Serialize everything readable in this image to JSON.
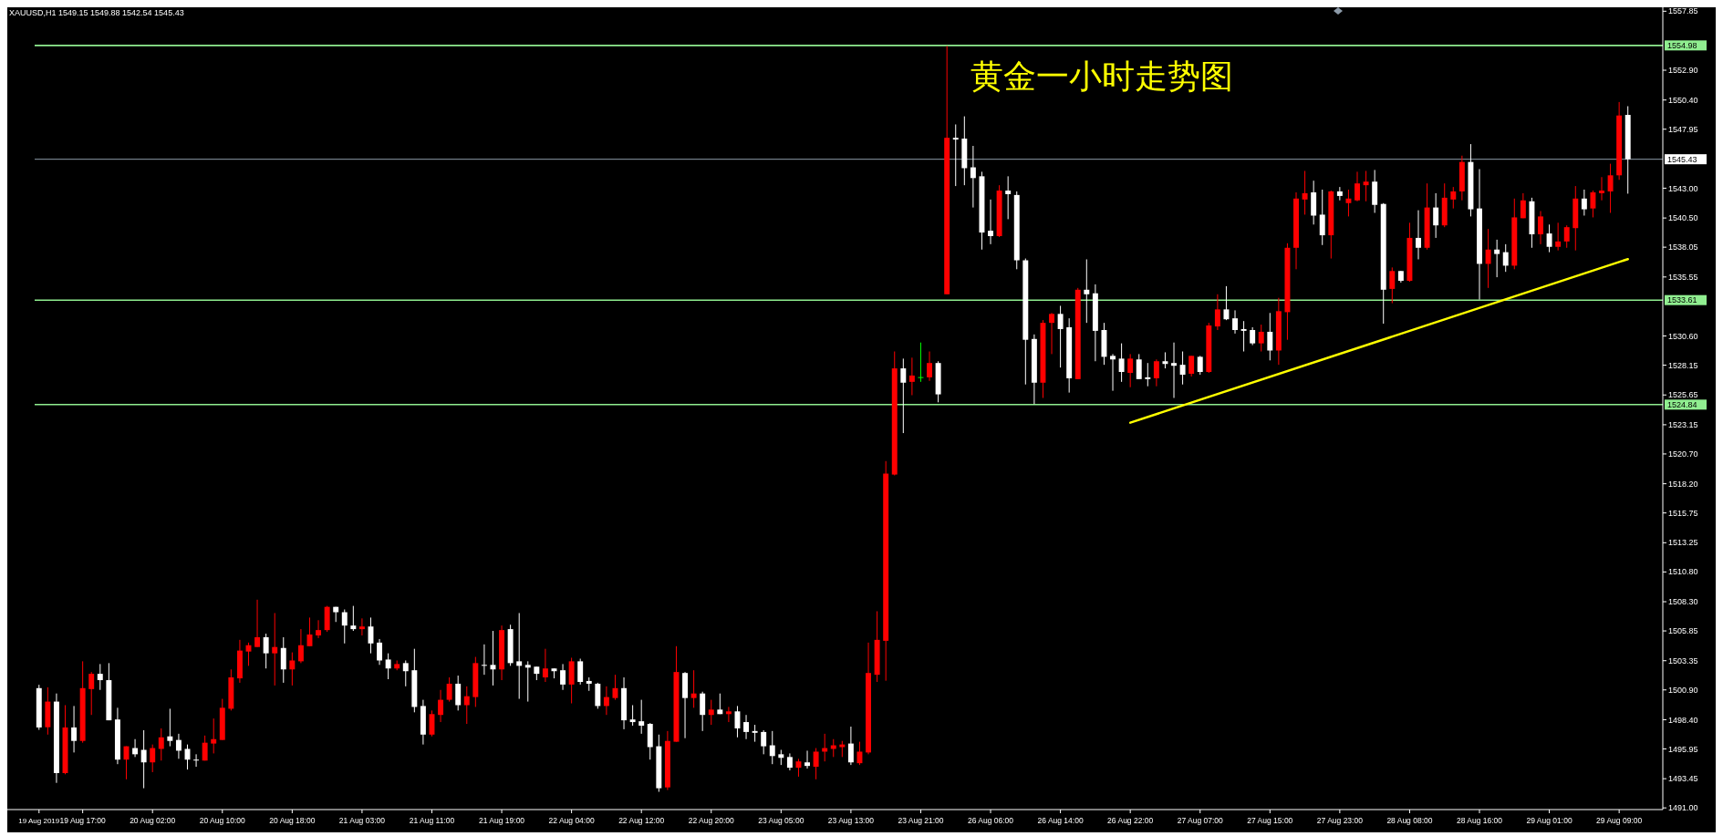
{
  "chart_data": {
    "type": "candlestick",
    "title": "黄金一小时走势图",
    "annotations": [
      "XAUUSD,H1  1549.15 1549.88 1542.54 1545.43"
    ],
    "categories": [
      "19 Aug 2019",
      null,
      null,
      null,
      null,
      "19 Aug 17:00",
      null,
      null,
      null,
      null,
      null,
      null,
      null,
      "20 Aug 02:00",
      null,
      null,
      null,
      null,
      null,
      null,
      null,
      "20 Aug 10:00",
      null,
      null,
      null,
      null,
      null,
      null,
      null,
      "20 Aug 18:00",
      null,
      null,
      null,
      null,
      null,
      null,
      null,
      "21 Aug 03:00",
      null,
      null,
      null,
      null,
      null,
      null,
      null,
      "21 Aug 11:00",
      null,
      null,
      null,
      null,
      null,
      null,
      null,
      "21 Aug 19:00",
      null,
      null,
      null,
      null,
      null,
      null,
      null,
      "22 Aug 04:00",
      null,
      null,
      null,
      null,
      null,
      null,
      null,
      "22 Aug 12:00",
      null,
      null,
      null,
      null,
      null,
      null,
      null,
      "22 Aug 20:00",
      null,
      null,
      null,
      null,
      null,
      null,
      null,
      "23 Aug 05:00",
      null,
      null,
      null,
      null,
      null,
      null,
      null,
      "23 Aug 13:00",
      null,
      null,
      null,
      null,
      null,
      null,
      null,
      "23 Aug 21:00",
      null,
      null,
      null,
      null,
      null,
      null,
      null,
      "26 Aug 06:00",
      null,
      null,
      null,
      null,
      null,
      null,
      null,
      "26 Aug 14:00",
      null,
      null,
      null,
      null,
      null,
      null,
      null,
      "26 Aug 22:00",
      null,
      null,
      null,
      null,
      null,
      null,
      null,
      "27 Aug 07:00",
      null,
      null,
      null,
      null,
      null,
      null,
      null,
      "27 Aug 15:00",
      null,
      null,
      null,
      null,
      null,
      null,
      null,
      "27 Aug 23:00",
      null,
      null,
      null,
      null,
      null,
      null,
      null,
      "28 Aug 08:00",
      null,
      null,
      null,
      null,
      null,
      null,
      null,
      "28 Aug 16:00",
      null,
      null,
      null,
      null,
      null,
      null,
      null,
      "29 Aug 01:00",
      null,
      null,
      null,
      null,
      null,
      null,
      null,
      "29 Aug 09:00",
      null
    ],
    "ohlc": [
      [
        1501.05,
        1501.33,
        1497.55,
        1497.75
      ],
      [
        1497.77,
        1501.12,
        1497.15,
        1499.92
      ],
      [
        1499.92,
        1500.6,
        1493.1,
        1493.92
      ],
      [
        1493.92,
        1499.62,
        1493.82,
        1497.75
      ],
      [
        1497.75,
        1499.55,
        1495.65,
        1496.62
      ],
      [
        1496.62,
        1503.3,
        1496.47,
        1501.05
      ],
      [
        1500.97,
        1502.4,
        1498.8,
        1502.25
      ],
      [
        1502.25,
        1503.07,
        1500.9,
        1501.72
      ],
      [
        1501.72,
        1503.15,
        1498.35,
        1498.35
      ],
      [
        1498.42,
        1499.4,
        1494.67,
        1495.05
      ],
      [
        1495.05,
        1496.17,
        1493.4,
        1496.17
      ],
      [
        1496.02,
        1496.77,
        1495.27,
        1495.5
      ],
      [
        1495.87,
        1497.52,
        1492.65,
        1494.82
      ],
      [
        1494.82,
        1496.32,
        1494.0,
        1496.02
      ],
      [
        1495.95,
        1497.67,
        1494.97,
        1496.92
      ],
      [
        1497.0,
        1499.32,
        1496.17,
        1496.62
      ],
      [
        1496.7,
        1497.22,
        1495.12,
        1495.8
      ],
      [
        1495.95,
        1496.32,
        1494.22,
        1495.05
      ],
      [
        1495.05,
        1495.5,
        1494.45,
        1495.0
      ],
      [
        1494.97,
        1497.07,
        1494.97,
        1496.47
      ],
      [
        1496.4,
        1498.5,
        1495.57,
        1496.77
      ],
      [
        1496.7,
        1500.15,
        1496.7,
        1499.4
      ],
      [
        1499.32,
        1502.62,
        1499.17,
        1501.95
      ],
      [
        1501.87,
        1505.1,
        1501.5,
        1504.2
      ],
      [
        1504.12,
        1504.87,
        1502.92,
        1504.65
      ],
      [
        1504.5,
        1508.47,
        1504.5,
        1505.32
      ],
      [
        1505.32,
        1505.62,
        1502.7,
        1503.97
      ],
      [
        1503.97,
        1507.35,
        1501.27,
        1504.5
      ],
      [
        1504.42,
        1505.32,
        1501.5,
        1502.62
      ],
      [
        1502.62,
        1504.05,
        1501.27,
        1503.37
      ],
      [
        1503.3,
        1506.0,
        1503.15,
        1504.65
      ],
      [
        1504.57,
        1506.97,
        1504.57,
        1505.55
      ],
      [
        1505.47,
        1506.75,
        1505.25,
        1505.92
      ],
      [
        1505.92,
        1507.95,
        1505.77,
        1507.87
      ],
      [
        1507.87,
        1507.87,
        1506.6,
        1507.42
      ],
      [
        1507.42,
        1507.65,
        1504.8,
        1506.3
      ],
      [
        1506.3,
        1507.95,
        1505.85,
        1506.0
      ],
      [
        1506.0,
        1506.9,
        1505.47,
        1506.22
      ],
      [
        1506.22,
        1506.97,
        1503.97,
        1504.8
      ],
      [
        1504.87,
        1505.17,
        1503.0,
        1503.37
      ],
      [
        1503.45,
        1503.97,
        1501.8,
        1502.7
      ],
      [
        1502.7,
        1503.37,
        1502.55,
        1503.07
      ],
      [
        1503.15,
        1503.37,
        1501.2,
        1502.47
      ],
      [
        1502.55,
        1504.35,
        1499.02,
        1499.47
      ],
      [
        1499.55,
        1500.07,
        1496.32,
        1497.15
      ],
      [
        1497.15,
        1499.17,
        1497.0,
        1498.87
      ],
      [
        1498.8,
        1500.9,
        1498.2,
        1500.07
      ],
      [
        1500.07,
        1501.95,
        1499.92,
        1501.42
      ],
      [
        1501.42,
        1502.1,
        1499.17,
        1499.62
      ],
      [
        1499.62,
        1501.2,
        1498.05,
        1500.37
      ],
      [
        1500.3,
        1503.67,
        1499.47,
        1503.15
      ],
      [
        1503.0,
        1504.72,
        1502.17,
        1502.95
      ],
      [
        1503.0,
        1505.85,
        1501.27,
        1502.62
      ],
      [
        1502.62,
        1506.3,
        1501.72,
        1505.92
      ],
      [
        1506.0,
        1506.37,
        1502.92,
        1503.15
      ],
      [
        1503.3,
        1507.35,
        1500.15,
        1502.92
      ],
      [
        1503.0,
        1503.3,
        1499.92,
        1502.77
      ],
      [
        1502.85,
        1502.85,
        1501.72,
        1502.25
      ],
      [
        1501.95,
        1504.35,
        1501.57,
        1502.7
      ],
      [
        1502.7,
        1502.7,
        1501.87,
        1502.47
      ],
      [
        1502.55,
        1503.07,
        1500.9,
        1501.35
      ],
      [
        1501.35,
        1503.6,
        1499.77,
        1503.3
      ],
      [
        1503.3,
        1503.52,
        1501.35,
        1501.57
      ],
      [
        1501.65,
        1501.95,
        1500.82,
        1501.42
      ],
      [
        1501.42,
        1501.5,
        1499.32,
        1499.55
      ],
      [
        1499.55,
        1501.2,
        1498.8,
        1500.3
      ],
      [
        1500.22,
        1502.17,
        1500.07,
        1501.05
      ],
      [
        1501.05,
        1501.95,
        1497.6,
        1498.35
      ],
      [
        1498.42,
        1499.62,
        1497.9,
        1498.2
      ],
      [
        1498.27,
        1500.07,
        1497.22,
        1497.9
      ],
      [
        1498.05,
        1498.12,
        1495.05,
        1496.1
      ],
      [
        1496.17,
        1497.15,
        1492.35,
        1492.65
      ],
      [
        1492.72,
        1497.45,
        1492.5,
        1496.62
      ],
      [
        1496.55,
        1504.57,
        1496.55,
        1502.4
      ],
      [
        1502.32,
        1502.4,
        1496.85,
        1500.22
      ],
      [
        1500.22,
        1502.55,
        1499.4,
        1500.6
      ],
      [
        1500.6,
        1500.75,
        1497.45,
        1498.8
      ],
      [
        1498.8,
        1500.07,
        1497.97,
        1499.25
      ],
      [
        1499.25,
        1500.6,
        1498.87,
        1498.87
      ],
      [
        1498.87,
        1499.47,
        1498.2,
        1499.1
      ],
      [
        1499.1,
        1499.55,
        1496.92,
        1497.67
      ],
      [
        1498.2,
        1498.8,
        1496.77,
        1497.37
      ],
      [
        1497.45,
        1497.97,
        1496.55,
        1497.3
      ],
      [
        1497.37,
        1497.52,
        1495.5,
        1496.17
      ],
      [
        1496.25,
        1497.45,
        1494.67,
        1495.35
      ],
      [
        1495.5,
        1495.87,
        1494.6,
        1495.2
      ],
      [
        1495.27,
        1495.57,
        1494.15,
        1494.37
      ],
      [
        1494.37,
        1495.12,
        1493.62,
        1494.9
      ],
      [
        1494.82,
        1495.8,
        1494.3,
        1494.52
      ],
      [
        1494.45,
        1496.02,
        1493.4,
        1495.72
      ],
      [
        1495.72,
        1497.22,
        1494.9,
        1496.02
      ],
      [
        1495.95,
        1496.77,
        1495.27,
        1496.25
      ],
      [
        1496.1,
        1496.62,
        1495.27,
        1496.32
      ],
      [
        1496.4,
        1497.82,
        1494.6,
        1494.82
      ],
      [
        1494.75,
        1496.55,
        1494.6,
        1495.72
      ],
      [
        1495.65,
        1504.87,
        1495.5,
        1502.32
      ],
      [
        1502.17,
        1507.5,
        1501.57,
        1505.1
      ],
      [
        1505.02,
        1520.1,
        1501.67,
        1519.05
      ],
      [
        1518.97,
        1529.3,
        1518.9,
        1527.88
      ],
      [
        1527.88,
        1528.7,
        1522.45,
        1526.68
      ],
      [
        1526.75,
        1528.78,
        1525.63,
        1527.28
      ],
      [
        1527.15,
        1530.05,
        1526.75,
        1527.15
      ],
      [
        1527.13,
        1529.3,
        1526.83,
        1528.33
      ],
      [
        1528.33,
        1528.48,
        1525.03,
        1525.7
      ],
      [
        1534.1,
        1554.93,
        1534.1,
        1547.23
      ],
      [
        1547.23,
        1548.35,
        1543.18,
        1547.08
      ],
      [
        1547.16,
        1549.03,
        1543.25,
        1544.68
      ],
      [
        1544.75,
        1546.55,
        1541.38,
        1543.85
      ],
      [
        1544.0,
        1544.38,
        1537.85,
        1539.28
      ],
      [
        1539.43,
        1542.05,
        1538.3,
        1538.98
      ],
      [
        1538.98,
        1543.25,
        1538.9,
        1542.8
      ],
      [
        1542.8,
        1544.0,
        1540.4,
        1542.5
      ],
      [
        1542.43,
        1542.73,
        1536.2,
        1536.95
      ],
      [
        1536.95,
        1537.1,
        1526.53,
        1530.28
      ],
      [
        1530.35,
        1530.73,
        1524.88,
        1526.68
      ],
      [
        1526.68,
        1531.93,
        1525.4,
        1531.7
      ],
      [
        1531.7,
        1532.53,
        1529.08,
        1532.45
      ],
      [
        1532.45,
        1533.13,
        1527.95,
        1531.18
      ],
      [
        1531.33,
        1532.08,
        1525.85,
        1527.05
      ],
      [
        1526.98,
        1534.63,
        1526.98,
        1534.48
      ],
      [
        1534.48,
        1537.03,
        1531.7,
        1534.1
      ],
      [
        1534.18,
        1534.93,
        1528.48,
        1531.03
      ],
      [
        1531.1,
        1531.7,
        1528.18,
        1528.85
      ],
      [
        1528.93,
        1529.08,
        1526.0,
        1528.63
      ],
      [
        1528.7,
        1529.98,
        1526.75,
        1527.58
      ],
      [
        1527.5,
        1529.08,
        1526.3,
        1528.7
      ],
      [
        1528.63,
        1529.08,
        1526.98,
        1526.98
      ],
      [
        1527.13,
        1528.33,
        1526.38,
        1526.98
      ],
      [
        1527.05,
        1528.63,
        1526.38,
        1528.48
      ],
      [
        1528.48,
        1529.23,
        1527.88,
        1528.25
      ],
      [
        1528.33,
        1530.05,
        1525.4,
        1528.1
      ],
      [
        1528.18,
        1529.3,
        1526.53,
        1527.35
      ],
      [
        1527.43,
        1528.93,
        1527.2,
        1528.93
      ],
      [
        1528.85,
        1528.93,
        1527.35,
        1527.58
      ],
      [
        1527.58,
        1531.7,
        1527.5,
        1531.48
      ],
      [
        1531.4,
        1534.1,
        1531.1,
        1532.83
      ],
      [
        1532.83,
        1534.78,
        1531.93,
        1532.0
      ],
      [
        1532.08,
        1532.75,
        1530.8,
        1531.1
      ],
      [
        1531.18,
        1531.85,
        1529.3,
        1531.03
      ],
      [
        1531.1,
        1531.33,
        1529.83,
        1529.98
      ],
      [
        1529.98,
        1531.55,
        1529.3,
        1530.95
      ],
      [
        1530.95,
        1532.53,
        1528.55,
        1529.38
      ],
      [
        1529.38,
        1533.8,
        1528.18,
        1532.68
      ],
      [
        1532.6,
        1538.38,
        1530.28,
        1538.0
      ],
      [
        1538.0,
        1542.65,
        1536.2,
        1542.13
      ],
      [
        1542.05,
        1544.45,
        1540.78,
        1542.58
      ],
      [
        1542.65,
        1543.63,
        1539.95,
        1540.7
      ],
      [
        1540.78,
        1542.88,
        1538.23,
        1539.05
      ],
      [
        1539.05,
        1542.8,
        1537.1,
        1542.73
      ],
      [
        1542.73,
        1543.1,
        1541.98,
        1542.35
      ],
      [
        1541.75,
        1542.88,
        1540.63,
        1542.13
      ],
      [
        1541.98,
        1544.38,
        1541.9,
        1543.4
      ],
      [
        1543.25,
        1544.45,
        1541.9,
        1543.55
      ],
      [
        1543.55,
        1544.53,
        1540.93,
        1541.6
      ],
      [
        1541.68,
        1541.75,
        1531.63,
        1534.48
      ],
      [
        1534.55,
        1536.35,
        1533.35,
        1536.05
      ],
      [
        1536.05,
        1536.05,
        1535.08,
        1535.23
      ],
      [
        1535.23,
        1540.1,
        1535.15,
        1538.83
      ],
      [
        1538.83,
        1541.15,
        1537.03,
        1538.0
      ],
      [
        1538.0,
        1543.4,
        1537.85,
        1541.38
      ],
      [
        1541.38,
        1542.58,
        1538.83,
        1539.88
      ],
      [
        1539.88,
        1543.4,
        1539.73,
        1542.2
      ],
      [
        1542.05,
        1543.1,
        1541.3,
        1542.73
      ],
      [
        1542.73,
        1545.73,
        1541.98,
        1545.2
      ],
      [
        1545.2,
        1546.7,
        1540.63,
        1541.23
      ],
      [
        1541.3,
        1544.6,
        1533.65,
        1536.65
      ],
      [
        1536.65,
        1539.58,
        1534.63,
        1537.85
      ],
      [
        1537.85,
        1538.68,
        1535.53,
        1537.48
      ],
      [
        1537.63,
        1538.3,
        1535.98,
        1536.5
      ],
      [
        1536.5,
        1542.13,
        1536.2,
        1540.55
      ],
      [
        1540.48,
        1542.58,
        1540.48,
        1541.98
      ],
      [
        1541.9,
        1542.2,
        1538.0,
        1539.13
      ],
      [
        1539.13,
        1541.08,
        1538.3,
        1540.63
      ],
      [
        1539.2,
        1539.95,
        1537.63,
        1538.08
      ],
      [
        1538.08,
        1540.1,
        1537.78,
        1538.53
      ],
      [
        1538.53,
        1539.88,
        1538.0,
        1539.73
      ],
      [
        1539.65,
        1543.18,
        1537.78,
        1542.13
      ],
      [
        1542.13,
        1542.88,
        1540.7,
        1541.23
      ],
      [
        1541.3,
        1542.8,
        1540.55,
        1542.65
      ],
      [
        1542.58,
        1543.93,
        1541.98,
        1542.8
      ],
      [
        1542.73,
        1545.05,
        1540.93,
        1544.08
      ],
      [
        1544.08,
        1550.23,
        1543.7,
        1549.1
      ],
      [
        1549.15,
        1549.88,
        1542.54,
        1545.43
      ]
    ],
    "colors": [
      "#ffffff",
      "#ff0000",
      "#ffffff",
      "#ff0000",
      "#ffffff",
      "#ff0000",
      "#ff0000",
      "#ffffff",
      "#ffffff",
      "#ffffff",
      "#ff0000",
      "#ffffff",
      "#ffffff",
      "#ff0000",
      "#ff0000",
      "#ffffff",
      "#ffffff",
      "#ffffff",
      "#ffffff",
      "#ff0000",
      "#ff0000",
      "#ff0000",
      "#ff0000",
      "#ff0000",
      "#ff0000",
      "#ff0000",
      "#ffffff",
      "#ff0000",
      "#ffffff",
      "#ff0000",
      "#ff0000",
      "#ff0000",
      "#ff0000",
      "#ff0000",
      "#ffffff",
      "#ffffff",
      "#ffffff",
      "#ff0000",
      "#ffffff",
      "#ffffff",
      "#ffffff",
      "#ff0000",
      "#ffffff",
      "#ffffff",
      "#ffffff",
      "#ff0000",
      "#ff0000",
      "#ff0000",
      "#ffffff",
      "#ff0000",
      "#ff0000",
      "#ffffff",
      "#ffffff",
      "#ff0000",
      "#ffffff",
      "#ffffff",
      "#ffffff",
      "#ffffff",
      "#ff0000",
      "#ffffff",
      "#ffffff",
      "#ff0000",
      "#ffffff",
      "#ffffff",
      "#ffffff",
      "#ff0000",
      "#ff0000",
      "#ffffff",
      "#ffffff",
      "#ffffff",
      "#ffffff",
      "#ffffff",
      "#ff0000",
      "#ff0000",
      "#ffffff",
      "#ff0000",
      "#ffffff",
      "#ff0000",
      "#ffffff",
      "#ff0000",
      "#ffffff",
      "#ffffff",
      "#ffffff",
      "#ffffff",
      "#ffffff",
      "#ffffff",
      "#ffffff",
      "#ff0000",
      "#ffffff",
      "#ff0000",
      "#ff0000",
      "#ff0000",
      "#ff0000",
      "#ffffff",
      "#ff0000",
      "#ff0000",
      "#ff0000",
      "#ff0000",
      "#ff0000",
      "#ffffff",
      "#ff0000",
      "#00ff00",
      "#ff0000",
      "#ffffff",
      "#ff0000",
      "#ffffff",
      "#ffffff",
      "#ffffff",
      "#ffffff",
      "#ffffff",
      "#ff0000",
      "#ffffff",
      "#ffffff",
      "#ffffff",
      "#ffffff",
      "#ff0000",
      "#ff0000",
      "#ffffff",
      "#ffffff",
      "#ff0000",
      "#ffffff",
      "#ffffff",
      "#ffffff",
      "#ffffff",
      "#ffffff",
      "#ff0000",
      "#ffffff",
      "#ffffff",
      "#ff0000",
      "#ffffff",
      "#ffffff",
      "#ffffff",
      "#ff0000",
      "#ffffff",
      "#ff0000",
      "#ff0000",
      "#ffffff",
      "#ffffff",
      "#ffffff",
      "#ffffff",
      "#ff0000",
      "#ffffff",
      "#ff0000",
      "#ff0000",
      "#ff0000",
      "#ff0000",
      "#ffffff",
      "#ffffff",
      "#ff0000",
      "#ffffff",
      "#ff0000",
      "#ff0000",
      "#ff0000",
      "#ffffff",
      "#ffffff",
      "#ff0000",
      "#ffffff",
      "#ff0000",
      "#ffffff",
      "#ff0000",
      "#ffffff",
      "#ff0000",
      "#ff0000",
      "#ff0000",
      "#ffffff",
      "#ffffff",
      "#ff0000",
      "#ffffff",
      "#ffffff",
      "#ff0000",
      "#ff0000",
      "#ffffff",
      "#ff0000",
      "#ffffff",
      "#ff0000",
      "#ff0000",
      "#ff0000",
      "#ffffff",
      "#ff0000",
      "#ff0000",
      "#ff0000",
      "#ff0000",
      "#ffffff"
    ],
    "series": [
      {
        "type": "line",
        "color": "#ffff00",
        "values": [
          null,
          null,
          null,
          null,
          null,
          null,
          null,
          null,
          null,
          null,
          null,
          null,
          null,
          null,
          null,
          null,
          null,
          null,
          null,
          null,
          null,
          null,
          null,
          null,
          null,
          null,
          null,
          null,
          null,
          null,
          null,
          null,
          null,
          null,
          null,
          null,
          null,
          null,
          null,
          null,
          null,
          null,
          null,
          null,
          null,
          null,
          null,
          null,
          null,
          null,
          null,
          null,
          null,
          null,
          null,
          null,
          null,
          null,
          null,
          null,
          null,
          null,
          null,
          null,
          null,
          null,
          null,
          null,
          null,
          null,
          null,
          null,
          null,
          null,
          null,
          null,
          null,
          null,
          null,
          null,
          null,
          null,
          null,
          null,
          null,
          null,
          null,
          null,
          null,
          null,
          null,
          null,
          null,
          null,
          null,
          null,
          null,
          null,
          null,
          null,
          null,
          null,
          null,
          null,
          null,
          null,
          null,
          null,
          null,
          null,
          null,
          null,
          null,
          null,
          null,
          null,
          null,
          null,
          null,
          null,
          null,
          null,
          null,
          null,
          null,
          1523.32,
          null,
          null,
          null,
          null,
          null,
          null,
          null,
          null,
          null,
          null,
          null,
          null,
          null,
          null,
          null,
          null,
          null,
          null,
          null,
          null,
          null,
          null,
          null,
          null,
          null,
          null,
          null,
          null,
          null,
          null,
          null,
          null,
          null,
          null,
          null,
          null,
          null,
          null,
          null,
          null,
          null,
          null,
          null,
          null,
          null,
          null,
          null,
          null,
          null,
          null,
          null,
          null,
          null,
          null,
          null,
          null,
          1537.05
        ]
      }
    ],
    "ref_lines": [
      {
        "axis": "y",
        "value": 1554.98,
        "label": "1554.98",
        "color": "#90ee90"
      },
      {
        "axis": "y",
        "value": 1545.43,
        "label": "1545.43",
        "color": "#8c9aa8"
      },
      {
        "axis": "y",
        "value": 1533.61,
        "label": "1533.61",
        "color": "#90ee90"
      },
      {
        "axis": "y",
        "value": 1524.84,
        "label": "1524.84",
        "color": "#90ee90"
      }
    ],
    "ylim": [
      1490.86,
      1558.18
    ],
    "yticks": [
      {
        "value": 1557.85,
        "label": "1557.85"
      },
      {
        "value": 1552.9,
        "label": "1552.90"
      },
      {
        "value": 1550.4,
        "label": "1550.40"
      },
      {
        "value": 1547.95,
        "label": "1547.95"
      },
      {
        "value": 1543.0,
        "label": "1543.00"
      },
      {
        "value": 1540.5,
        "label": "1540.50"
      },
      {
        "value": 1538.05,
        "label": "1538.05"
      },
      {
        "value": 1535.55,
        "label": "1535.55"
      },
      {
        "value": 1530.6,
        "label": "1530.60"
      },
      {
        "value": 1528.15,
        "label": "1528.15"
      },
      {
        "value": 1525.65,
        "label": "1525.65"
      },
      {
        "value": 1523.15,
        "label": "1523.15"
      },
      {
        "value": 1520.7,
        "label": "1520.70"
      },
      {
        "value": 1518.2,
        "label": "1518.20"
      },
      {
        "value": 1515.75,
        "label": "1515.75"
      },
      {
        "value": 1513.25,
        "label": "1513.25"
      },
      {
        "value": 1510.8,
        "label": "1510.80"
      },
      {
        "value": 1508.3,
        "label": "1508.30"
      },
      {
        "value": 1505.85,
        "label": "1505.85"
      },
      {
        "value": 1503.35,
        "label": "1503.35"
      },
      {
        "value": 1500.9,
        "label": "1500.90"
      },
      {
        "value": 1498.4,
        "label": "1498.40"
      },
      {
        "value": 1495.95,
        "label": "1495.95"
      },
      {
        "value": 1493.45,
        "label": "1493.45"
      },
      {
        "value": 1491.0,
        "label": "1491.00"
      }
    ]
  }
}
